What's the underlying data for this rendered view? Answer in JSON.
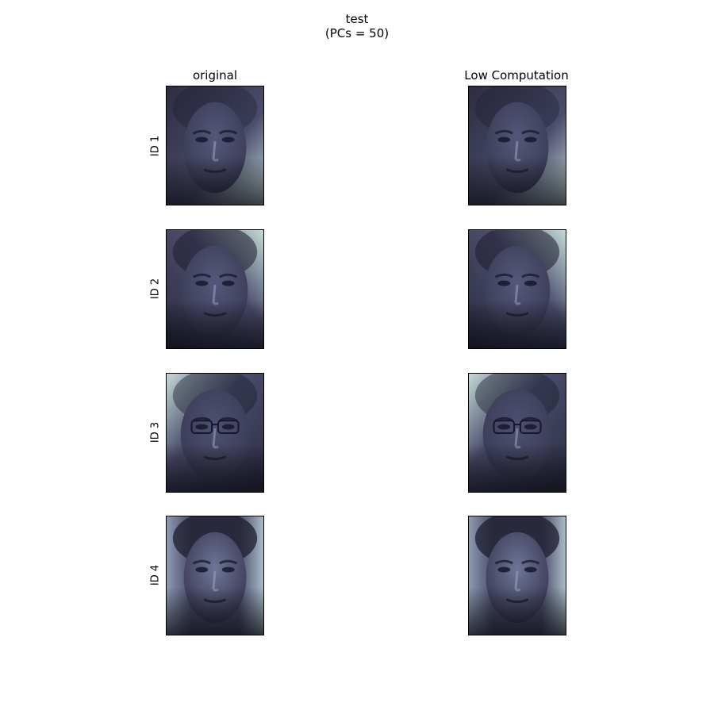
{
  "figure": {
    "title_line1": "test",
    "title_line2": "(PCs = 50)"
  },
  "columns": [
    {
      "title": "original"
    },
    {
      "title": "Low Computation"
    }
  ],
  "rows": [
    {
      "label": "ID 1"
    },
    {
      "label": "ID 2"
    },
    {
      "label": "ID 3"
    },
    {
      "label": "ID 4"
    }
  ],
  "colormap": {
    "name": "bone",
    "dark": "#0b0c14",
    "mid": "#4a4c6c",
    "light": "#c3dad6"
  }
}
